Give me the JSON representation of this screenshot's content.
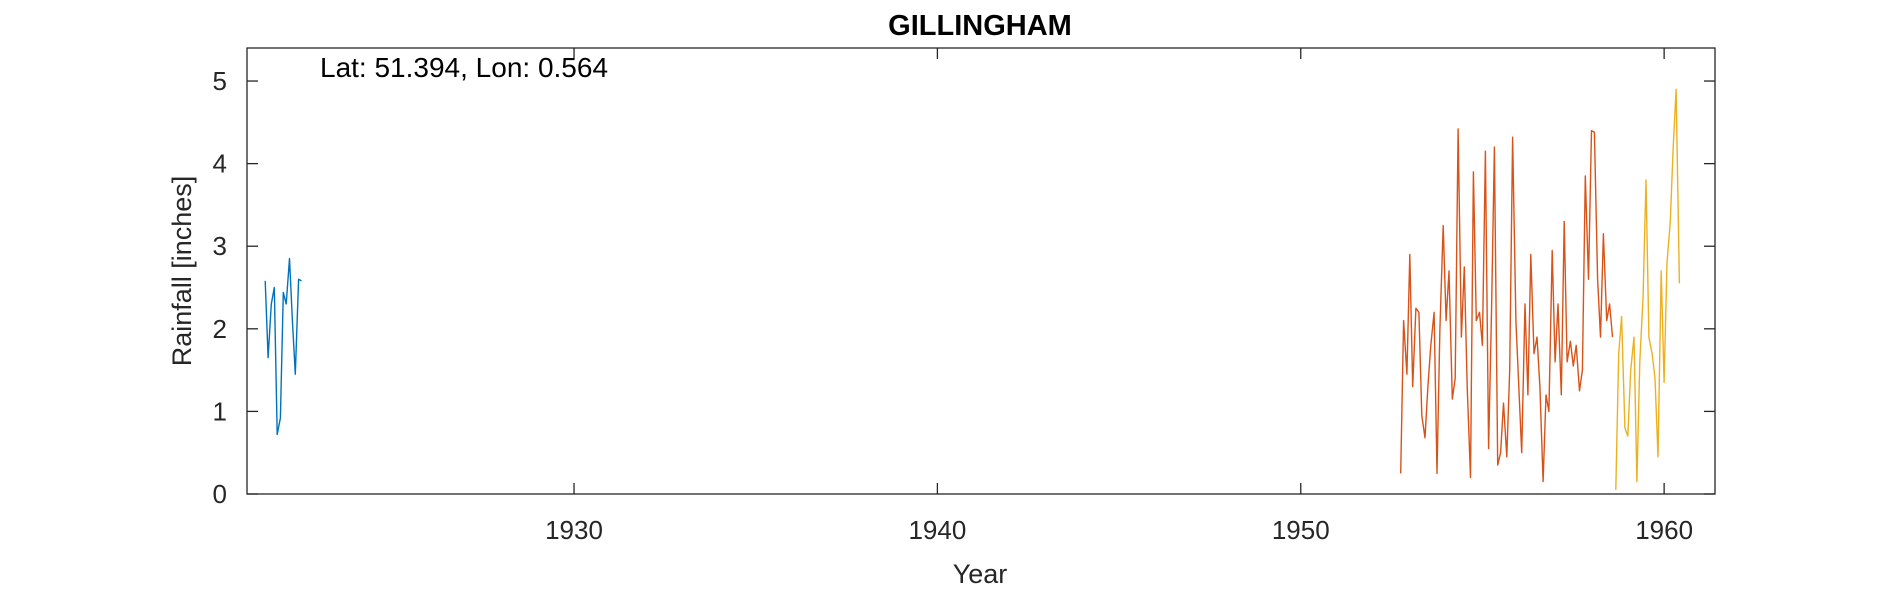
{
  "chart_data": {
    "type": "line",
    "title": "GILLINGHAM",
    "xlabel": "Year",
    "ylabel": "Rainfall [inches]",
    "annotation": "Lat: 51.394, Lon: 0.564",
    "xlim": [
      1921,
      1961.4
    ],
    "ylim": [
      0,
      5.4
    ],
    "xticks": [
      1930,
      1940,
      1950,
      1960
    ],
    "yticks": [
      0,
      1,
      2,
      3,
      4,
      5
    ],
    "grid": false,
    "series": [
      {
        "color": "#0072BD",
        "x": [
          1921.5,
          1921.58,
          1921.67,
          1921.75,
          1921.83,
          1921.92,
          1922.0,
          1922.08,
          1922.17,
          1922.25,
          1922.33,
          1922.42,
          1922.5
        ],
        "y": [
          2.58,
          1.65,
          2.3,
          2.5,
          0.72,
          0.92,
          2.44,
          2.3,
          2.85,
          2.1,
          1.45,
          2.6,
          2.58
        ]
      },
      {
        "color": "#D95319",
        "x": [
          1952.75,
          1952.83,
          1952.92,
          1953.0,
          1953.08,
          1953.17,
          1953.25,
          1953.33,
          1953.42,
          1953.5,
          1953.58,
          1953.67,
          1953.75,
          1953.83,
          1953.92,
          1954.0,
          1954.08,
          1954.17,
          1954.25,
          1954.33,
          1954.42,
          1954.5,
          1954.58,
          1954.67,
          1954.75,
          1954.83,
          1954.92,
          1955.0,
          1955.08,
          1955.17,
          1955.25,
          1955.33,
          1955.42,
          1955.5,
          1955.58,
          1955.67,
          1955.75,
          1955.83,
          1955.92,
          1956.0,
          1956.08,
          1956.17,
          1956.25,
          1956.33,
          1956.42,
          1956.5,
          1956.58,
          1956.67,
          1956.75,
          1956.83,
          1956.92,
          1957.0,
          1957.08,
          1957.17,
          1957.25,
          1957.33,
          1957.42,
          1957.5,
          1957.58,
          1957.67,
          1957.75,
          1957.83,
          1957.92,
          1958.0,
          1958.08,
          1958.17,
          1958.25,
          1958.33,
          1958.42,
          1958.5,
          1958.58
        ],
        "y": [
          0.25,
          2.1,
          1.45,
          2.9,
          1.3,
          2.25,
          2.2,
          0.95,
          0.68,
          1.3,
          1.8,
          2.2,
          0.25,
          2.0,
          3.25,
          2.1,
          2.7,
          1.15,
          1.4,
          4.42,
          1.9,
          2.75,
          1.3,
          0.2,
          3.9,
          2.1,
          2.2,
          1.8,
          4.15,
          0.55,
          2.2,
          4.2,
          0.35,
          0.5,
          1.1,
          0.45,
          1.5,
          4.32,
          2.1,
          1.3,
          0.5,
          2.3,
          1.2,
          2.9,
          1.7,
          1.9,
          1.3,
          0.15,
          1.2,
          1.0,
          2.95,
          1.6,
          2.3,
          1.2,
          3.3,
          1.6,
          1.85,
          1.55,
          1.8,
          1.25,
          1.5,
          3.85,
          2.6,
          4.4,
          4.38,
          2.6,
          1.9,
          3.15,
          2.1,
          2.3,
          1.9
        ]
      },
      {
        "color": "#EDB120",
        "x": [
          1958.67,
          1958.75,
          1958.83,
          1958.92,
          1959.0,
          1959.08,
          1959.17,
          1959.25,
          1959.33,
          1959.42,
          1959.5,
          1959.58,
          1959.67,
          1959.75,
          1959.83,
          1959.92,
          1960.0,
          1960.08,
          1960.17,
          1960.25,
          1960.33,
          1960.42
        ],
        "y": [
          0.05,
          1.7,
          2.15,
          0.8,
          0.7,
          1.5,
          1.9,
          0.15,
          1.6,
          2.4,
          3.8,
          1.9,
          1.7,
          1.4,
          0.45,
          2.7,
          1.35,
          2.8,
          3.3,
          4.2,
          4.9,
          2.55
        ]
      }
    ]
  }
}
